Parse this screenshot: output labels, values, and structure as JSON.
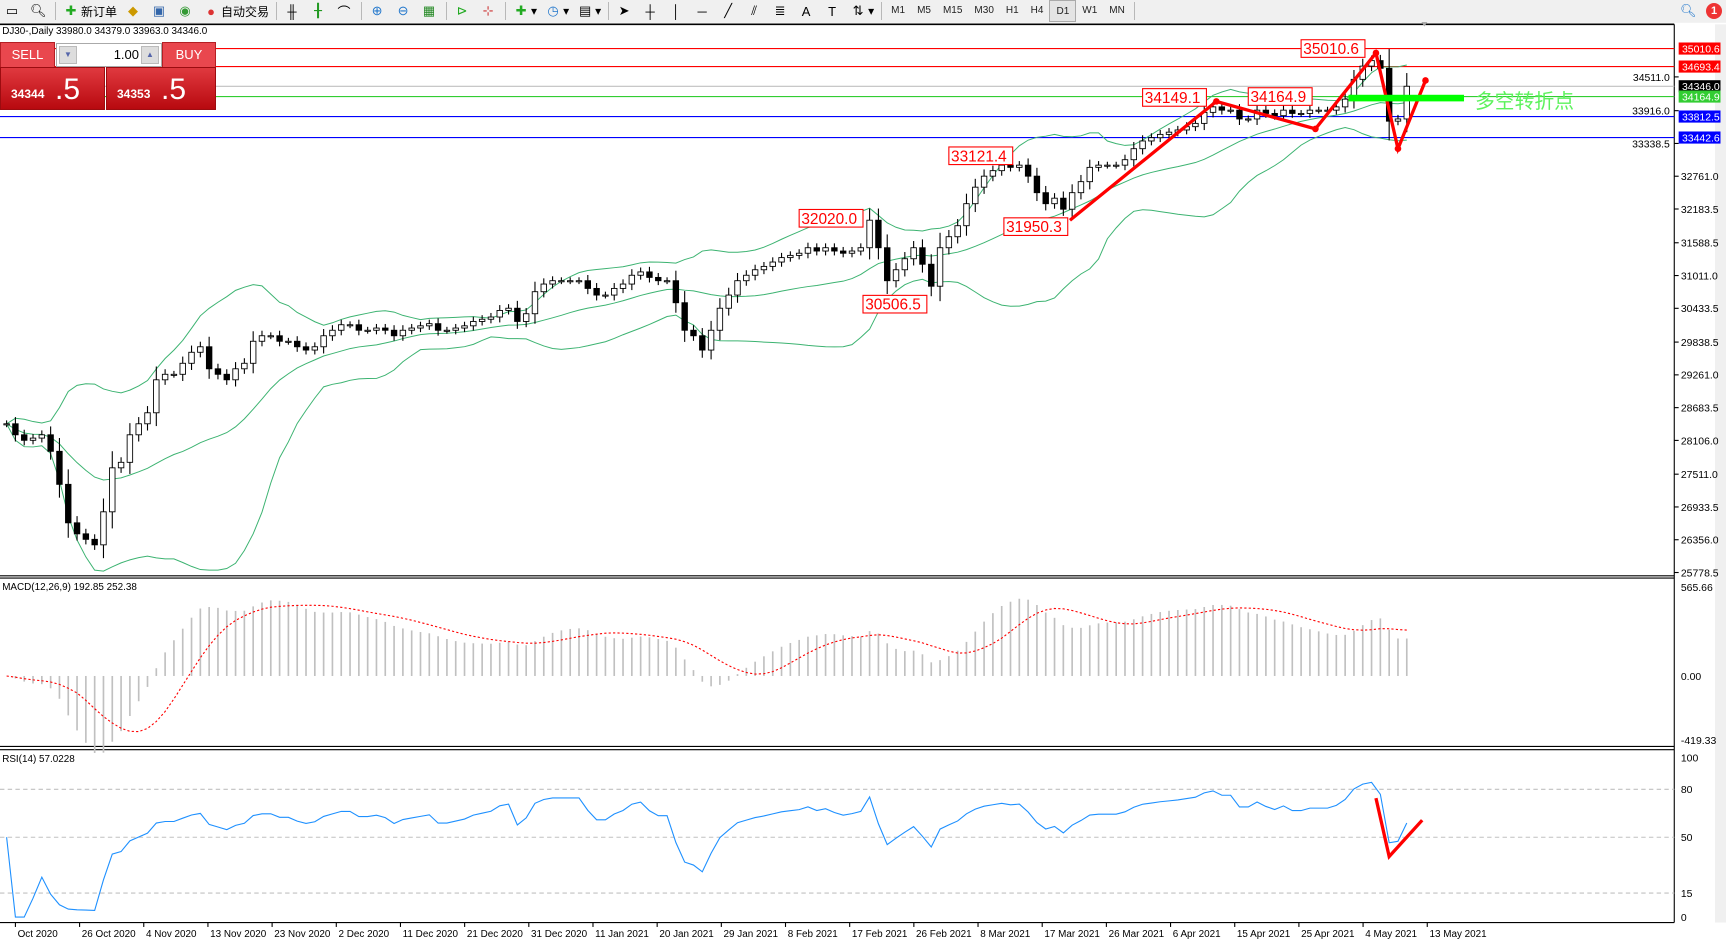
{
  "toolbar": {
    "new_order_label": "新订单",
    "auto_trading_label": "自动交易",
    "timeframes": [
      "M1",
      "M5",
      "M15",
      "M30",
      "H1",
      "H4",
      "D1",
      "W1",
      "MN"
    ],
    "active_timeframe": "D1",
    "notification_count": "1"
  },
  "chart_header": "DJ30-,Daily  33980.0 34379.0 33963.0 34346.0",
  "trade_panel": {
    "sell_label": "SELL",
    "buy_label": "BUY",
    "lot_value": "1.00",
    "sell_price_main": "34344",
    "sell_price_frac": ".5",
    "buy_price_main": "34353",
    "buy_price_frac": ".5"
  },
  "colors": {
    "bull": "#ffffff",
    "bear": "#000000",
    "bands": "#3cb371",
    "annot": "#ff0000",
    "rsi": "#1e90ff",
    "macd_hist": "#c0c0c0",
    "macd_signal": "#ff0000",
    "pivot": "#00ff00"
  },
  "chart_data": {
    "type": "candlestick",
    "symbol": "DJ30-",
    "timeframe": "Daily",
    "close": [
      28399,
      28205,
      28108,
      28147,
      28205,
      27914,
      27332,
      26654,
      26460,
      26363,
      26266,
      26848,
      27623,
      27720,
      28205,
      28399,
      28593,
      29174,
      29271,
      29271,
      29465,
      29659,
      29756,
      29368,
      29271,
      29174,
      29368,
      29465,
      29853,
      29950,
      29950,
      29853,
      29853,
      29756,
      29698,
      29756,
      29950,
      30047,
      30144,
      30144,
      30047,
      30047,
      30086,
      30047,
      29950,
      30047,
      30086,
      30125,
      30163,
      30047,
      30047,
      30086,
      30125,
      30202,
      30241,
      30280,
      30396,
      30435,
      30202,
      30338,
      30726,
      30861,
      30920,
      30920,
      30920,
      30920,
      30784,
      30667,
      30667,
      30784,
      30861,
      31016,
      31075,
      30978,
      30920,
      30920,
      30532,
      30047,
      29950,
      29698,
      30047,
      30435,
      30667,
      30920,
      31016,
      31113,
      31172,
      31249,
      31327,
      31366,
      31404,
      31501,
      31443,
      31501,
      31443,
      31404,
      31443,
      31501,
      31986,
      31501,
      30920,
      31113,
      31307,
      31501,
      31210,
      30823,
      31501,
      31695,
      31889,
      32277,
      32568,
      32762,
      32859,
      32956,
      32917,
      32956,
      32762,
      32471,
      32277,
      32374,
      32180,
      32471,
      32665,
      32917,
      32956,
      32956,
      32956,
      33052,
      33246,
      33382,
      33440,
      33498,
      33537,
      33576,
      33634,
      33692,
      33886,
      33983,
      33925,
      33925,
      33770,
      33770,
      33925,
      33867,
      33828,
      33925,
      33867,
      33867,
      33925,
      33925,
      33925,
      33983,
      34119,
      34468,
      34701,
      34798,
      34662,
      33731,
      33770,
      34346
    ],
    "price_axis": {
      "max": 35010.6,
      "min": 25778.5,
      "ticks": [
        "34511.0",
        "33916.0",
        "33338.5",
        "32761.0",
        "32183.5",
        "31588.5",
        "31011.0",
        "30433.5",
        "29838.5",
        "29261.0",
        "28683.5",
        "28106.0",
        "27511.0",
        "26933.5",
        "26356.0",
        "25778.5"
      ]
    },
    "date_labels": [
      "Oct 2020",
      "26 Oct 2020",
      "4 Nov 2020",
      "13 Nov 2020",
      "23 Nov 2020",
      "2 Dec 2020",
      "11 Dec 2020",
      "21 Dec 2020",
      "31 Dec 2020",
      "11 Jan 2021",
      "20 Jan 2021",
      "29 Jan 2021",
      "8 Feb 2021",
      "17 Feb 2021",
      "26 Feb 2021",
      "8 Mar 2021",
      "17 Mar 2021",
      "26 Mar 2021",
      "6 Apr 2021",
      "15 Apr 2021",
      "25 Apr 2021",
      "4 May 2021",
      "13 May 2021"
    ],
    "horizontal_lines": [
      {
        "price": 35010.6,
        "label": "35010.6",
        "color": "#ff0000"
      },
      {
        "price": 34693.4,
        "label": "34693.4",
        "color": "#ff0000"
      },
      {
        "price": 34346.0,
        "label": "34346.0",
        "color": "#000000",
        "line": "#c0c0c0"
      },
      {
        "price": 34164.9,
        "label": "34164.9",
        "color": "#32cd32"
      },
      {
        "price": 33812.5,
        "label": "33812.5",
        "color": "#0000ff"
      },
      {
        "price": 33442.6,
        "label": "33442.6",
        "color": "#0000ff"
      }
    ],
    "annotations": [
      {
        "text": "35010.6",
        "bar": 155,
        "price": 35010.6
      },
      {
        "text": "34149.1",
        "bar": 137,
        "price": 34149.1
      },
      {
        "text": "34164.9",
        "bar": 148,
        "price": 34164.9
      },
      {
        "text": "33121.4",
        "bar": 115,
        "price": 33121.4
      },
      {
        "text": "32020.0",
        "bar": 98,
        "price": 32020.0
      },
      {
        "text": "31950.3",
        "bar": 121,
        "price": 31950.3
      },
      {
        "text": "30506.5",
        "bar": 105,
        "price": 30506.5
      }
    ],
    "pivot_label": "多空转折点",
    "bands_label": "",
    "macd": {
      "label": "MACD(12,26,9) 192.85 252.38",
      "ticks": [
        "565.66",
        "0.00",
        "-419.33"
      ],
      "max": 565.66,
      "min": -419.33
    },
    "rsi": {
      "label": "RSI(14) 57.0228",
      "ticks": [
        "100",
        "80",
        "50",
        "15",
        "0"
      ],
      "levels": [
        80,
        50,
        15
      ]
    }
  }
}
